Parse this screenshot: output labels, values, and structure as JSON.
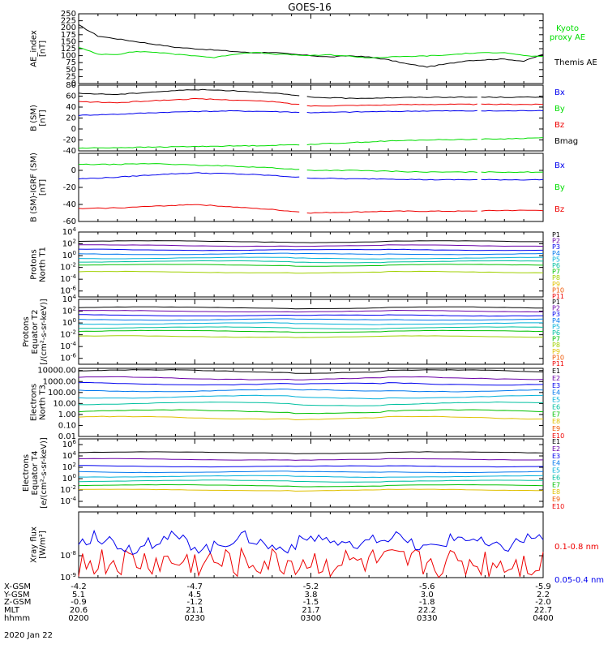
{
  "title": "GOES-16",
  "date": "2020 Jan 22",
  "colors": {
    "black": "#000000",
    "green": "#00dd00",
    "blue": "#0000ee",
    "red": "#ee0000"
  },
  "footer": {
    "row_labels": [
      "X-GSM",
      "Y-GSM",
      "Z-GSM",
      "MLT",
      "hhmm"
    ],
    "columns": [
      [
        "-4.2",
        "5.1",
        "-0.9",
        "20.6",
        "0200"
      ],
      [
        "-4.7",
        "4.5",
        "-1.2",
        "21.1",
        "0230"
      ],
      [
        "-5.2",
        "3.8",
        "-1.5",
        "21.7",
        "0300"
      ],
      [
        "-5.6",
        "3.0",
        "-1.8",
        "22.2",
        "0330"
      ],
      [
        "-5.9",
        "2.2",
        "-2.0",
        "22.7",
        "0400"
      ]
    ]
  },
  "chart_data": [
    {
      "type": "line",
      "ylabel": "AE_index\n[nT]",
      "ylim": [
        0,
        250
      ],
      "log": false,
      "yticks": [
        "0",
        "25",
        "50",
        "75",
        "100",
        "125",
        "150",
        "175",
        "200",
        "225",
        "250"
      ],
      "ytick_values": [
        0,
        25,
        50,
        75,
        100,
        125,
        150,
        175,
        200,
        225,
        250
      ],
      "x": [
        0,
        5,
        10,
        15,
        20,
        25,
        30,
        35,
        40,
        45,
        50,
        55,
        60,
        65,
        70,
        75,
        80,
        85,
        90,
        95,
        100,
        105,
        110,
        115,
        120
      ],
      "series": [
        {
          "name": "Themis AE",
          "color": "black",
          "values": [
            210,
            170,
            160,
            150,
            140,
            130,
            125,
            120,
            115,
            110,
            112,
            105,
            100,
            95,
            100,
            95,
            85,
            70,
            60,
            70,
            82,
            85,
            88,
            80,
            105
          ]
        },
        {
          "name": "Kyoto\nproxy AE",
          "color": "green",
          "values": [
            130,
            105,
            105,
            115,
            112,
            105,
            100,
            93,
            105,
            112,
            106,
            103,
            100,
            103,
            98,
            92,
            95,
            97,
            99,
            102,
            108,
            110,
            112,
            100,
            96
          ]
        }
      ]
    },
    {
      "type": "line",
      "ylabel": "B (SM)\n[nT]",
      "ylim": [
        -40,
        80
      ],
      "log": false,
      "yticks": [
        "-40",
        "-20",
        "0",
        "20",
        "40",
        "60",
        "80"
      ],
      "ytick_values": [
        -40,
        -20,
        0,
        20,
        40,
        60,
        80
      ],
      "x": [
        0,
        10,
        20,
        30,
        40,
        50,
        60,
        70,
        80,
        90,
        100,
        110,
        120
      ],
      "series": [
        {
          "name": "Bx",
          "color": "blue",
          "values": [
            25,
            27,
            30,
            32,
            33,
            32,
            30,
            31,
            32,
            33,
            33,
            33,
            34
          ]
        },
        {
          "name": "By",
          "color": "green",
          "values": [
            -35,
            -34,
            -33,
            -32,
            -31,
            -30,
            -28,
            -25,
            -22,
            -20,
            -19,
            -18,
            -16
          ]
        },
        {
          "name": "Bz",
          "color": "red",
          "values": [
            50,
            48,
            52,
            55,
            53,
            50,
            42,
            43,
            44,
            45,
            45,
            45,
            45
          ]
        },
        {
          "name": "Bmag",
          "color": "black",
          "values": [
            65,
            63,
            68,
            72,
            70,
            66,
            58,
            56,
            57,
            58,
            58,
            58,
            58
          ]
        }
      ]
    },
    {
      "type": "line",
      "ylabel": "B (SM)-IGRF (SM)\n[nT]",
      "ylim": [
        -60,
        20
      ],
      "log": false,
      "yticks": [
        "-60",
        "-40",
        "-20",
        "0"
      ],
      "ytick_values": [
        -60,
        -40,
        -20,
        0
      ],
      "x": [
        0,
        10,
        20,
        30,
        40,
        50,
        60,
        70,
        80,
        90,
        100,
        110,
        120
      ],
      "series": [
        {
          "name": "Bx",
          "color": "blue",
          "values": [
            -10,
            -8,
            -5,
            -3,
            -4,
            -6,
            -9,
            -10,
            -10,
            -11,
            -11,
            -11,
            -11
          ]
        },
        {
          "name": "By",
          "color": "green",
          "values": [
            7,
            7,
            8,
            6,
            5,
            3,
            0,
            0,
            -1,
            -2,
            -2,
            -2,
            -2
          ]
        },
        {
          "name": "Bz",
          "color": "red",
          "values": [
            -45,
            -44,
            -42,
            -40,
            -43,
            -46,
            -50,
            -49,
            -48,
            -48,
            -48,
            -47,
            -47
          ]
        }
      ]
    },
    {
      "type": "line",
      "ylabel": "Protons\nNorth T1",
      "ylim_log": [
        -7,
        4
      ],
      "log": true,
      "yticks": [
        "10-6",
        "10-4",
        "10-2",
        "100",
        "102",
        "104"
      ],
      "ytick_exp": [
        -6,
        -4,
        -2,
        0,
        2,
        4
      ],
      "x": [
        0,
        30,
        60,
        90,
        120
      ],
      "legend": [
        "P1",
        "P2",
        "P3",
        "P4",
        "P5",
        "P6",
        "P7",
        "P8",
        "P9",
        "P10",
        "P11"
      ],
      "legend_colors": [
        "#000000",
        "#6a00a8",
        "#0000ee",
        "#0077ee",
        "#00b0d8",
        "#00c0a0",
        "#00c000",
        "#a0d000",
        "#e0c000",
        "#ee5500",
        "#ee0000"
      ],
      "levels": [
        2.4,
        1.7,
        1.0,
        0.3,
        -0.4,
        -1.0,
        -1.6,
        -2.8
      ]
    },
    {
      "type": "line",
      "ylabel": "Protons\nEquator T2\n[/(cm²-s-sr-keV)]",
      "ylim_log": [
        -7,
        4
      ],
      "log": true,
      "yticks": [
        "10-6",
        "10-4",
        "10-2",
        "100",
        "102",
        "104"
      ],
      "ytick_exp": [
        -6,
        -4,
        -2,
        0,
        2,
        4
      ],
      "legend": [
        "P1",
        "P2",
        "P3",
        "P4",
        "P5",
        "P6",
        "P7",
        "P8",
        "P9",
        "P10",
        "P11"
      ],
      "legend_colors": [
        "#000000",
        "#6a00a8",
        "#0000ee",
        "#0077ee",
        "#00b0d8",
        "#00c0a0",
        "#00c000",
        "#a0d000",
        "#e0c000",
        "#ee5500",
        "#ee0000"
      ],
      "levels": [
        2.6,
        2.0,
        1.3,
        0.6,
        -0.1,
        -0.8,
        -1.4,
        -2.3
      ]
    },
    {
      "type": "line",
      "ylabel": "Electrons\nNorth T3",
      "ylim_log": [
        -2,
        4.2
      ],
      "log": true,
      "yticks": [
        "0.01",
        "0.10",
        "1.00",
        "10.00",
        "100.00",
        "1000.00",
        "10000.00"
      ],
      "ytick_exp": [
        -2,
        -1,
        0,
        1,
        2,
        3,
        4
      ],
      "legend": [
        "E1",
        "E2",
        "E3",
        "E4",
        "E5",
        "E6",
        "E7",
        "E8",
        "E9",
        "E10"
      ],
      "legend_colors": [
        "#000000",
        "#6a00a8",
        "#0000ee",
        "#0077ee",
        "#00b0d8",
        "#00c0a0",
        "#00c000",
        "#e0c000",
        "#ee5500",
        "#ee0000"
      ],
      "levels": [
        3.95,
        3.3,
        2.8,
        2.2,
        1.6,
        1.0,
        0.3,
        -0.3
      ]
    },
    {
      "type": "line",
      "ylabel": "Electrons\nEquator T4\n[e/(cm²-s-sr-keV)]",
      "ylim_log": [
        -5,
        7
      ],
      "log": true,
      "yticks": [
        "10-4",
        "10-2",
        "100",
        "102",
        "104",
        "106"
      ],
      "ytick_exp": [
        -4,
        -2,
        0,
        2,
        4,
        6
      ],
      "legend": [
        "E1",
        "E2",
        "E3",
        "E4",
        "E5",
        "E6",
        "E7",
        "E8",
        "E9",
        "E10"
      ],
      "legend_colors": [
        "#000000",
        "#6a00a8",
        "#0000ee",
        "#0077ee",
        "#00b0d8",
        "#00c0a0",
        "#00c000",
        "#e0c000",
        "#ee5500",
        "#ee0000"
      ],
      "levels": [
        4.6,
        3.4,
        2.2,
        1.2,
        0.4,
        -0.4,
        -1.2,
        -2.0
      ]
    },
    {
      "type": "line",
      "ylabel": "Xray flux\n[W/m²]",
      "ylim_log": [
        -9,
        -6
      ],
      "log": true,
      "yticks": [
        "10-9",
        "10-8"
      ],
      "ytick_exp": [
        -9,
        -8
      ],
      "series": [
        {
          "name": "0.1-0.8 nm",
          "color": "red"
        },
        {
          "name": "0.05-0.4 nm",
          "color": "blue"
        }
      ]
    }
  ]
}
